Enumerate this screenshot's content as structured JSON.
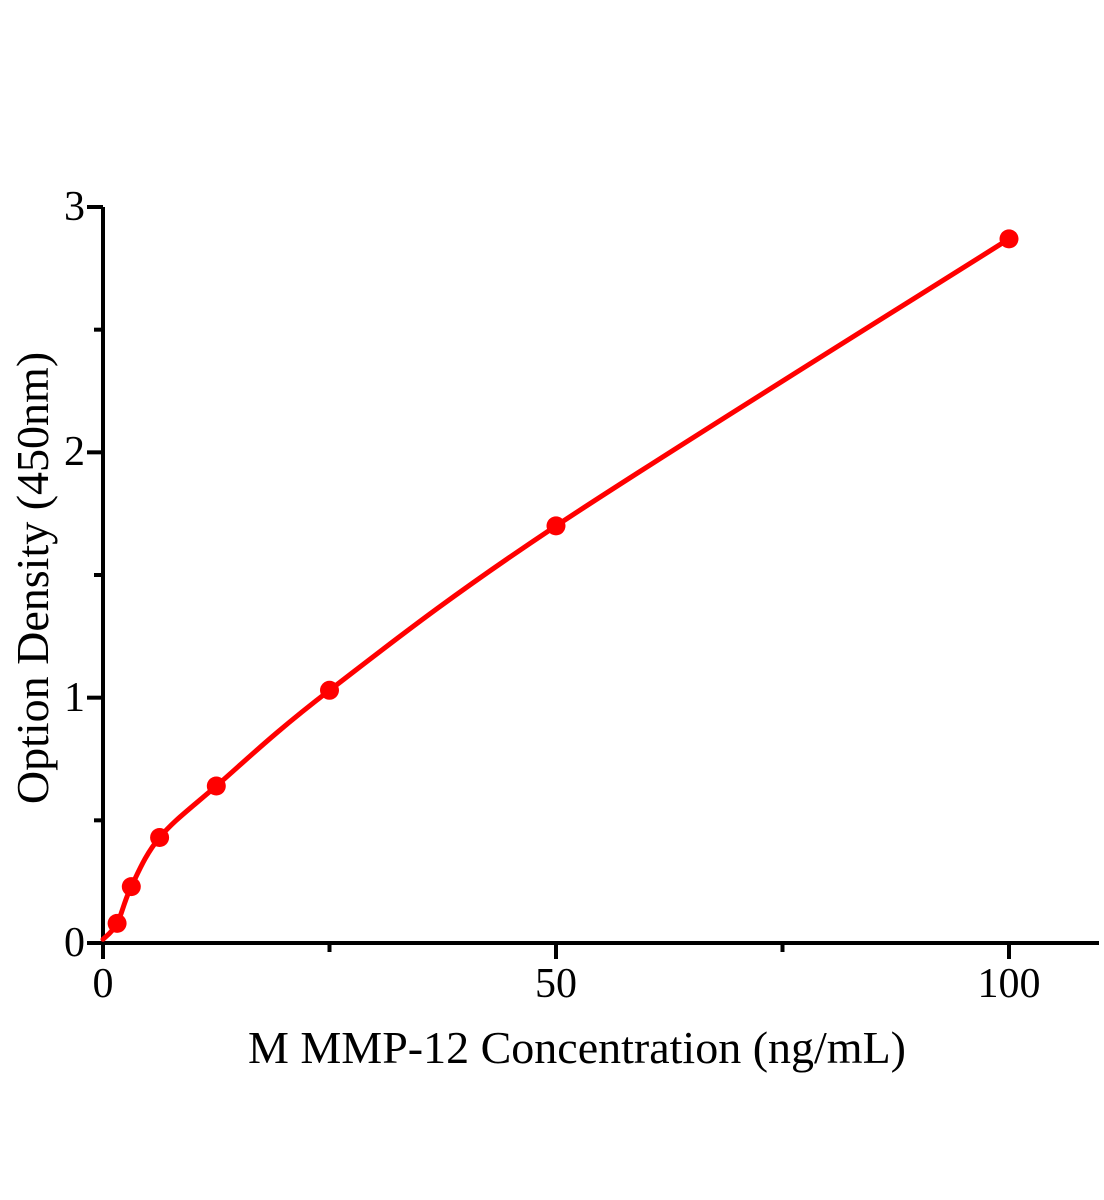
{
  "figure": {
    "background": "#FFFFFF",
    "axis_color": "#000000",
    "accent_color": "#FF0000"
  },
  "chart_data": {
    "type": "scatter",
    "title": "",
    "xlabel": "M MMP-12  Concentration (ng/mL)",
    "ylabel": "Option Density (450nm)",
    "x": [
      1.56,
      3.12,
      6.25,
      12.5,
      25,
      50,
      100
    ],
    "y": [
      0.08,
      0.23,
      0.43,
      0.64,
      1.03,
      1.7,
      2.87
    ],
    "curve_start": {
      "x": 0,
      "y": 0.015
    },
    "xlim": [
      0,
      110
    ],
    "ylim": [
      0,
      3
    ],
    "x_major_ticks": [
      0,
      50,
      100
    ],
    "x_minor_ticks": [
      25,
      75
    ],
    "y_major_ticks": [
      0,
      1,
      2,
      3
    ],
    "y_minor_ticks": [
      0.5,
      1.5,
      2.5
    ],
    "x_tick_labels": [
      "0",
      "50",
      "100"
    ],
    "y_tick_labels": [
      "0",
      "1",
      "2",
      "3"
    ],
    "grid": false,
    "legend": null,
    "line_color": "#FF0000",
    "marker_color": "#FF0000",
    "marker_shape": "circle"
  }
}
